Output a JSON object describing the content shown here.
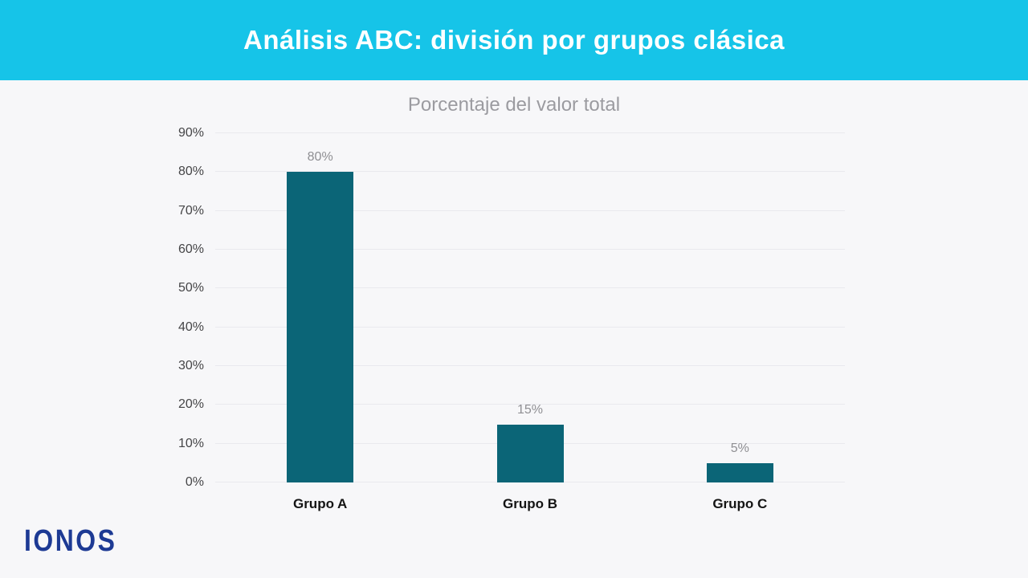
{
  "header": {
    "title": "Análisis ABC: división por grupos clásica",
    "background_color": "#16c4e8",
    "text_color": "#ffffff"
  },
  "chart_data": {
    "type": "bar",
    "title": "Porcentaje del valor total",
    "categories": [
      "Grupo A",
      "Grupo B",
      "Grupo C"
    ],
    "values": [
      80,
      15,
      5
    ],
    "value_labels": [
      "80%",
      "15%",
      "5%"
    ],
    "xlabel": "",
    "ylabel": "",
    "ylim": [
      0,
      90
    ],
    "ytick_step": 10,
    "ytick_suffix": "%",
    "grid": true,
    "legend": "none",
    "bar_color": "#0b6577",
    "value_label_color": "#8f8f93",
    "tick_label_color": "#454547",
    "category_label_color": "#141414",
    "gridline_color": "#e9e9ee",
    "background_color": "#f7f7f9"
  },
  "logo": {
    "text": "IONOS",
    "color": "#1d3a94"
  }
}
